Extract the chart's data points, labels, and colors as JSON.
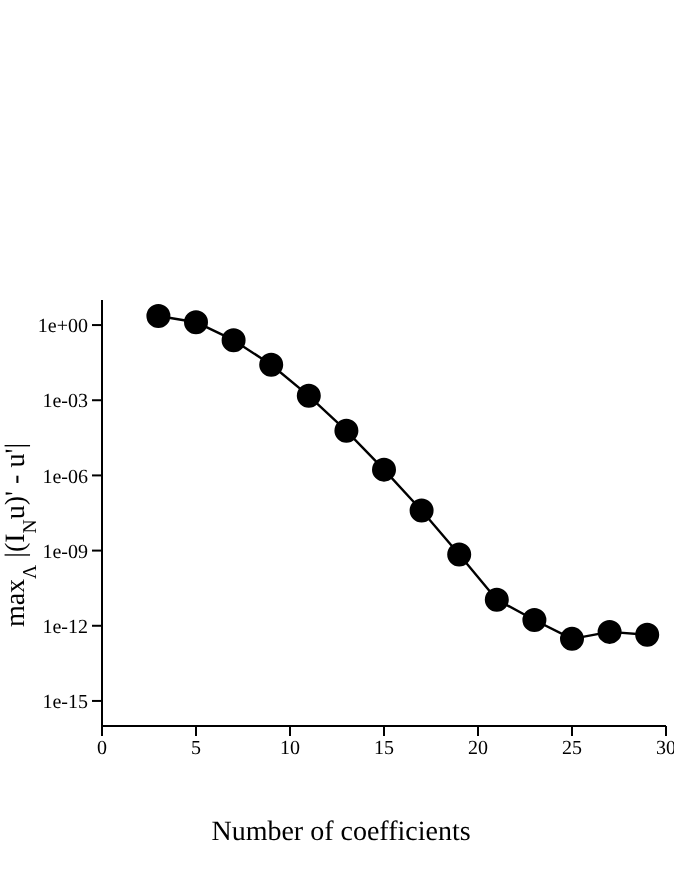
{
  "chart_data": {
    "type": "line",
    "xlabel": "Number of coefficients",
    "ylabel": "max$_{Λ}$ |(I$_{N}$u)' - u'|",
    "log": "y",
    "marker": "circle",
    "line_style": "solid",
    "grid": false,
    "x": [
      3,
      5,
      7,
      9,
      11,
      13,
      15,
      17,
      19,
      21,
      23,
      25,
      27,
      29
    ],
    "series": [
      {
        "color": "#000000",
        "values": [
          2.3,
          1.3,
          0.25,
          0.026,
          0.0015,
          6e-05,
          1.7e-06,
          4e-08,
          7e-10,
          1.1e-11,
          1.7e-12,
          3e-13,
          5.7e-13,
          4.4e-13
        ]
      }
    ],
    "xlim": [
      0,
      30
    ],
    "xticks": [
      0,
      5,
      10,
      15,
      20,
      25,
      30
    ],
    "ylim": [
      1e-16,
      10
    ],
    "yticks": [
      {
        "value": 1,
        "label": "1e+00"
      },
      {
        "value": 0.001,
        "label": "1e-03"
      },
      {
        "value": 1e-06,
        "label": "1e-06"
      },
      {
        "value": 1e-09,
        "label": "1e-09"
      },
      {
        "value": 1e-12,
        "label": "1e-12"
      },
      {
        "value": 1e-15,
        "label": "1e-15"
      }
    ]
  }
}
